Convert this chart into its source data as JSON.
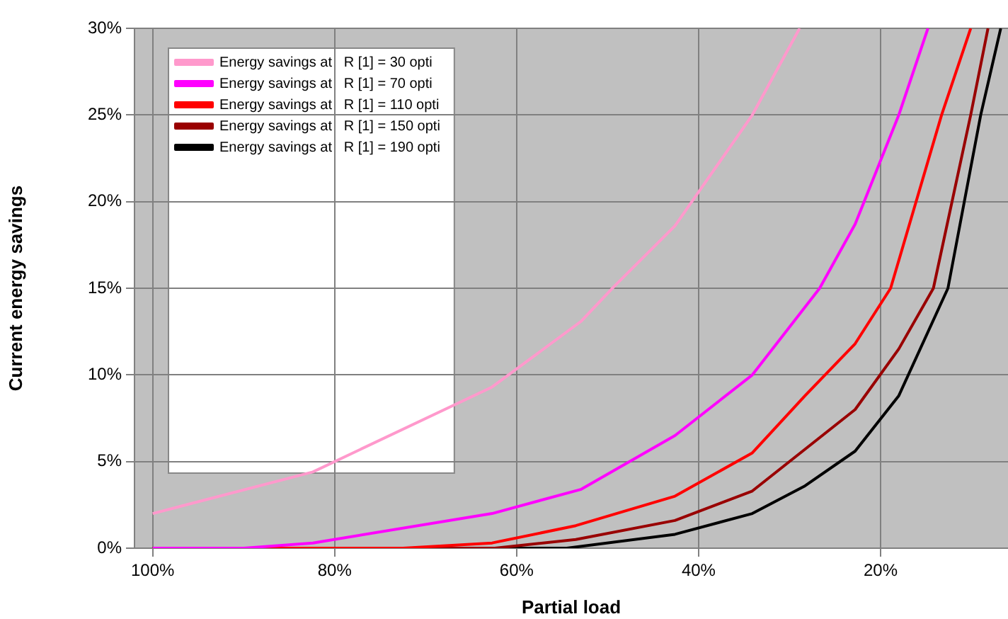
{
  "chart_data": {
    "type": "line",
    "xlabel": "Partial load",
    "ylabel": "Current energy savings",
    "legend": "top left",
    "grid": true,
    "marker": "none",
    "line_style": "solid",
    "xlim": [
      102,
      6
    ],
    "xticks": [
      {
        "value": 100,
        "label": "100%"
      },
      {
        "value": 80,
        "label": "80%"
      },
      {
        "value": 60,
        "label": "60%"
      },
      {
        "value": 40,
        "label": "40%"
      },
      {
        "value": 20,
        "label": "20%"
      }
    ],
    "ylim": [
      0,
      30
    ],
    "yticks": [
      {
        "value": 0,
        "label": "0%"
      },
      {
        "value": 5,
        "label": "5%"
      },
      {
        "value": 10,
        "label": "10%"
      },
      {
        "value": 15,
        "label": "15%"
      },
      {
        "value": 20,
        "label": "20%"
      },
      {
        "value": 25,
        "label": "25%"
      },
      {
        "value": 30,
        "label": "30%"
      }
    ],
    "series": [
      {
        "name": "Energy savings at   R [1] = 30 opti",
        "color": "#ff99cc",
        "x": [
          100,
          82.4,
          62.7,
          52.9,
          49.3,
          42.6,
          34.1,
          28.9
        ],
        "values": [
          2.0,
          4.4,
          9.3,
          13.1,
          15.1,
          18.6,
          25.0,
          30.0
        ]
      },
      {
        "name": "Energy savings at   R [1] = 70 opti",
        "color": "#ff00ff",
        "x": [
          100,
          90,
          82.4,
          62.7,
          52.9,
          42.6,
          34.1,
          26.7,
          22.8,
          18.0,
          14.8
        ],
        "values": [
          0,
          0,
          0.3,
          2.0,
          3.4,
          6.5,
          10.0,
          15.0,
          18.7,
          25.0,
          30.0
        ]
      },
      {
        "name": "Energy savings at   R [1] = 110 opti",
        "color": "#ff0000",
        "x": [
          100,
          72.5,
          62.7,
          53.5,
          42.6,
          34.1,
          28.3,
          22.8,
          18.9,
          13.3,
          10.1
        ],
        "values": [
          0,
          0,
          0.3,
          1.3,
          3.0,
          5.5,
          8.8,
          11.8,
          15.0,
          25.0,
          30.0
        ]
      },
      {
        "name": "Energy savings at   R [1] = 150 opti",
        "color": "#990000",
        "x": [
          100,
          62.4,
          53.5,
          42.6,
          34.1,
          22.8,
          18.0,
          14.2,
          10.1,
          8.2
        ],
        "values": [
          0,
          0,
          0.5,
          1.6,
          3.3,
          8.0,
          11.5,
          15.0,
          25.0,
          30.0
        ]
      },
      {
        "name": "Energy savings at   R [1] = 190 opti",
        "color": "#000000",
        "x": [
          100,
          54.5,
          42.6,
          34.1,
          28.3,
          22.8,
          18.0,
          12.6,
          9.0,
          6.8
        ],
        "values": [
          0,
          0,
          0.8,
          2.0,
          3.6,
          5.6,
          8.8,
          15.0,
          25.0,
          30.0
        ]
      }
    ]
  }
}
